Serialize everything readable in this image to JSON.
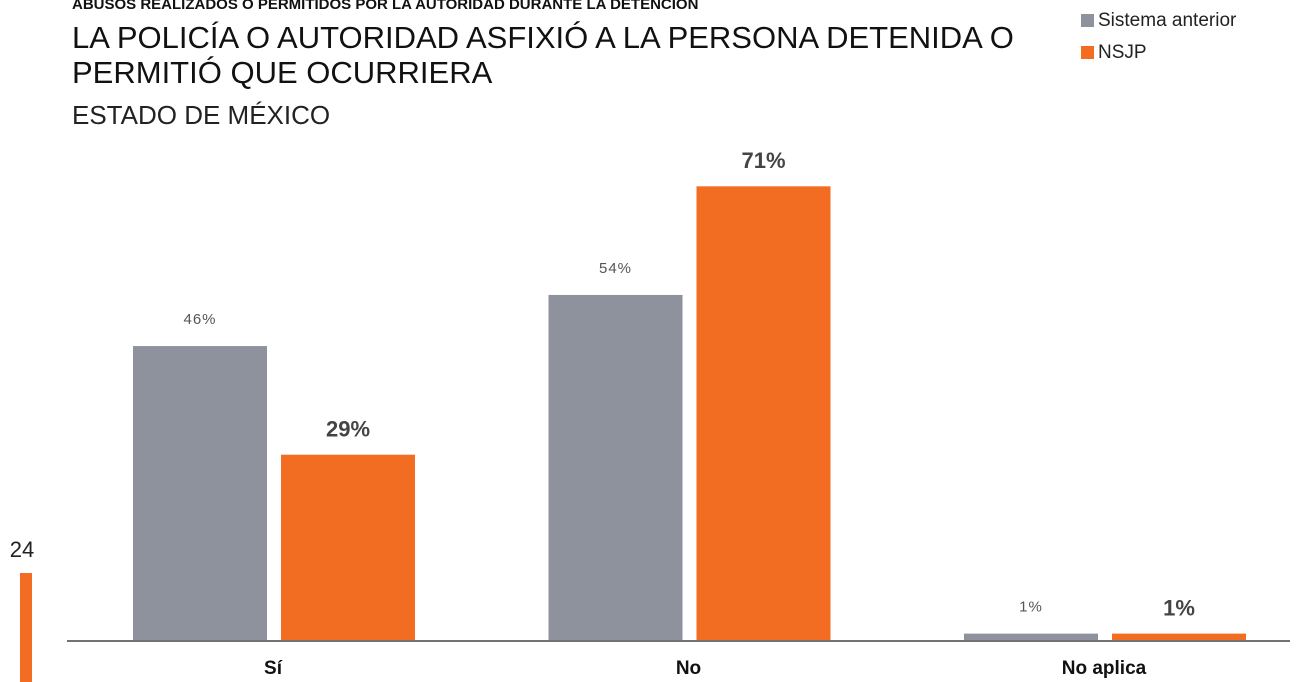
{
  "chart_data": {
    "type": "bar",
    "supertitle": "ABUSOS REALIZADOS O PERMITIDOS POR LA AUTORIDAD DURANTE LA DETENCIÓN",
    "title": "LA POLICÍA O AUTORIDAD ASFIXIÓ A LA PERSONA DETENIDA O PERMITIÓ QUE OCURRIERA",
    "subtitle": "ESTADO DE MÉXICO",
    "categories": [
      "Sí",
      "No",
      "No aplica"
    ],
    "series": [
      {
        "name": "Sistema anterior",
        "color": "#8e929d",
        "values": [
          46,
          54,
          1
        ],
        "value_labels": [
          "46%",
          "54%",
          "1%"
        ]
      },
      {
        "name": "NSJP",
        "color": "#f26c22",
        "values": [
          29,
          71,
          1
        ],
        "value_labels": [
          "29%",
          "71%",
          "1%"
        ]
      }
    ],
    "ylim": [
      0,
      100
    ],
    "legend": "top-right",
    "page_number": "24"
  }
}
